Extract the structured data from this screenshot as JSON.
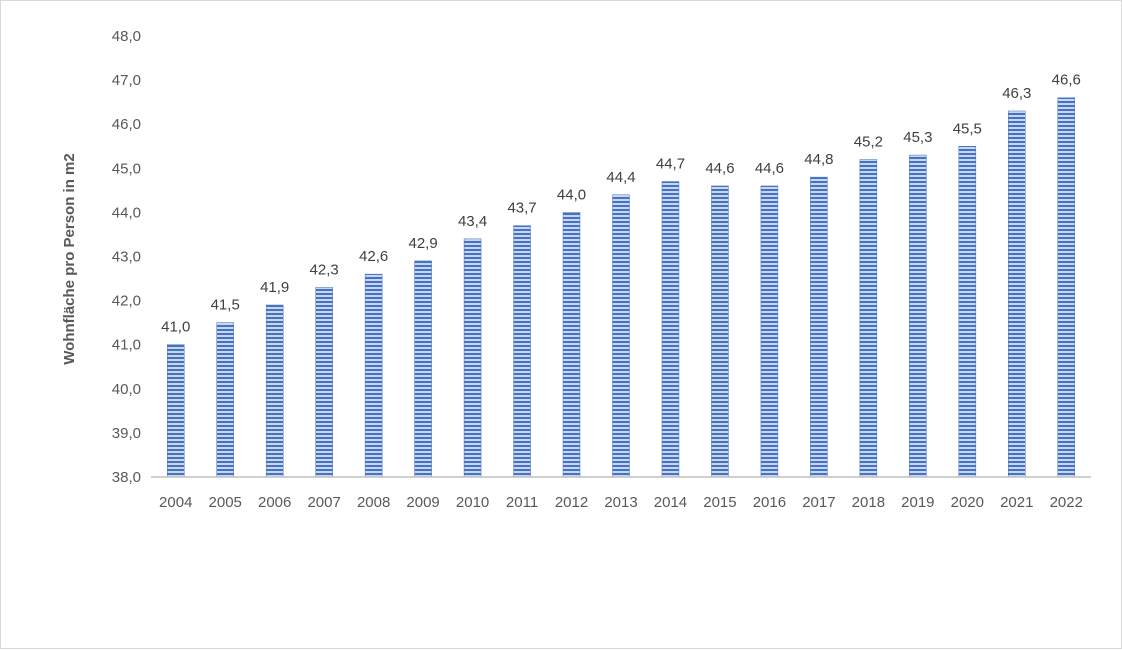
{
  "chart_data": {
    "type": "bar",
    "title": "",
    "xlabel": "",
    "ylabel": "Wohnfläche pro Person in m2",
    "ylim": [
      38,
      48
    ],
    "yticks": [
      "38,0",
      "39,0",
      "40,0",
      "41,0",
      "42,0",
      "43,0",
      "44,0",
      "45,0",
      "46,0",
      "47,0",
      "48,0"
    ],
    "categories": [
      "2004",
      "2005",
      "2006",
      "2007",
      "2008",
      "2009",
      "2010",
      "2011",
      "2012",
      "2013",
      "2014",
      "2015",
      "2016",
      "2017",
      "2018",
      "2019",
      "2020",
      "2021",
      "2022"
    ],
    "values": [
      41.0,
      41.5,
      41.9,
      42.3,
      42.6,
      42.9,
      43.4,
      43.7,
      44.0,
      44.4,
      44.7,
      44.6,
      44.6,
      44.8,
      45.2,
      45.3,
      45.5,
      46.3,
      46.6
    ],
    "data_labels": [
      "41,0",
      "41,5",
      "41,9",
      "42,3",
      "42,6",
      "42,9",
      "43,4",
      "43,7",
      "44,0",
      "44,4",
      "44,7",
      "44,6",
      "44,6",
      "44,8",
      "45,2",
      "45,3",
      "45,5",
      "46,3",
      "46,6"
    ],
    "bar_color": "#4472c4",
    "bar_pattern": "horizontal-stripes",
    "grid": false,
    "legend": "none"
  }
}
